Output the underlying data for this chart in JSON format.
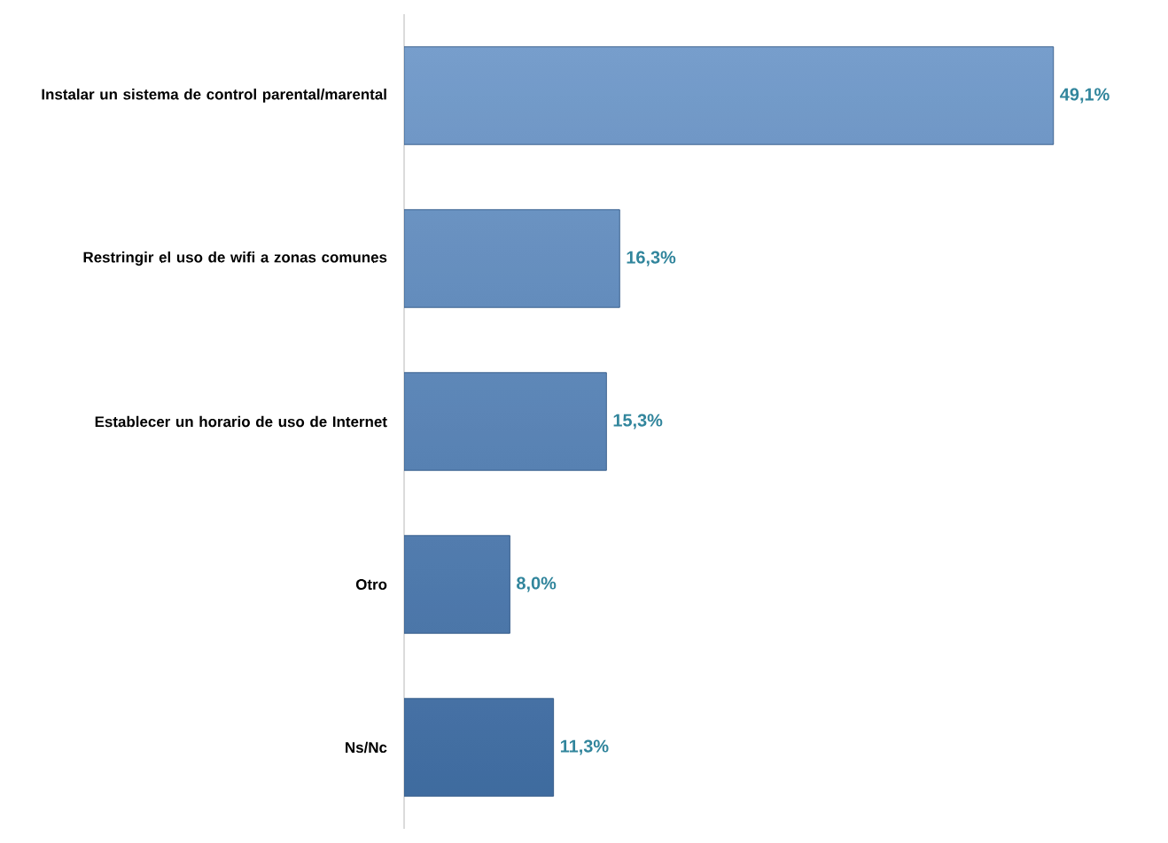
{
  "chart_data": {
    "type": "bar",
    "orientation": "horizontal",
    "categories": [
      "Instalar un sistema de control parental/marental",
      "Restringir el uso de wifi a zonas comunes",
      "Establecer un horario de uso de Internet",
      "Otro",
      "Ns/Nc"
    ],
    "values": [
      49.1,
      16.3,
      15.3,
      8.0,
      11.3
    ],
    "value_labels": [
      "49,1%",
      "16,3%",
      "15,3%",
      "8,0%",
      "11,3%"
    ],
    "color": "#4a7ebb"
  }
}
